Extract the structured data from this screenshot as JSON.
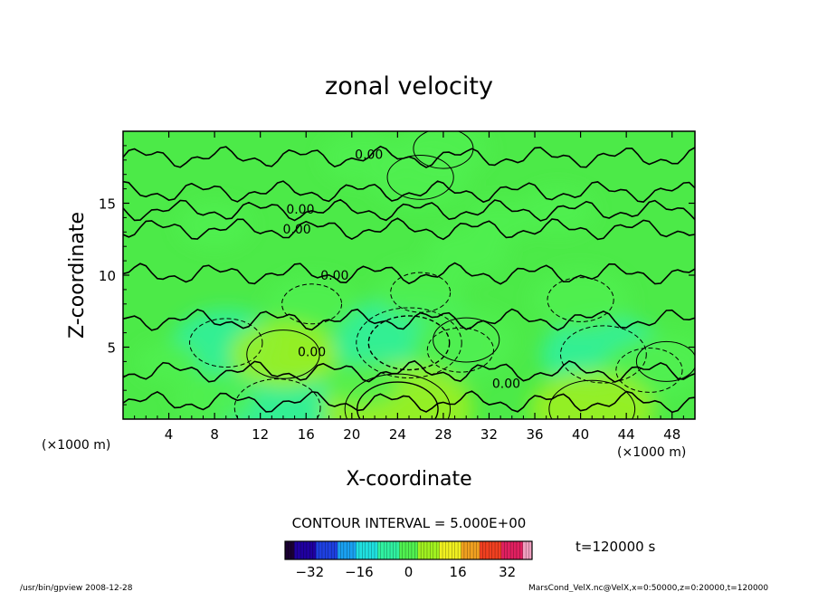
{
  "chart_data": {
    "type": "heatmap",
    "title": "zonal velocity",
    "xlabel": "X-coordinate",
    "ylabel": "Z-coordinate",
    "x_unit_left": "(×1000 m)",
    "x_unit_right": "(×1000 m)",
    "xlim": [
      0,
      50
    ],
    "ylim": [
      0,
      20
    ],
    "x_ticks": [
      4,
      8,
      12,
      16,
      20,
      24,
      28,
      32,
      36,
      40,
      44,
      48
    ],
    "y_ticks": [
      5,
      10,
      15
    ],
    "contour_labels": [
      {
        "text": "0.00",
        "x": 21.5,
        "z": 18.4
      },
      {
        "text": "0.00",
        "x": 15.5,
        "z": 14.6
      },
      {
        "text": "0.00",
        "x": 15.2,
        "z": 13.2
      },
      {
        "text": "0.00",
        "x": 18.5,
        "z": 10.0
      },
      {
        "text": "0.00",
        "x": 16.5,
        "z": 4.7
      },
      {
        "text": "0.00",
        "x": 33.5,
        "z": 2.5
      }
    ],
    "contour_interval_text": "CONTOUR INTERVAL = 5.000E+00",
    "colorbar": {
      "range": [
        -40,
        40
      ],
      "ticks": [
        -32,
        -16,
        0,
        16,
        32
      ],
      "colors": [
        "#1a0033",
        "#2000a0",
        "#1e40e0",
        "#1aa0f0",
        "#20e0e0",
        "#30f0a0",
        "#50f050",
        "#a0f020",
        "#f0f020",
        "#f0a020",
        "#f04020",
        "#e02060",
        "#f0a0c0"
      ]
    },
    "time_label": "t=120000 s",
    "features": [
      {
        "x": 25,
        "z": 5.3,
        "value": -12
      },
      {
        "x": 29.5,
        "z": 4.8,
        "value": -6
      },
      {
        "x": 42,
        "z": 4.5,
        "value": -9
      },
      {
        "x": 46,
        "z": 3.4,
        "value": -6
      },
      {
        "x": 13.5,
        "z": 0.8,
        "value": -9
      },
      {
        "x": 16.5,
        "z": 8.0,
        "value": -5
      },
      {
        "x": 26,
        "z": 8.8,
        "value": -5
      },
      {
        "x": 40,
        "z": 8.3,
        "value": -6
      },
      {
        "x": 9,
        "z": 5.3,
        "value": -7
      },
      {
        "x": 30,
        "z": 11.5,
        "value": -4
      },
      {
        "x": 38,
        "z": 14.5,
        "value": -3
      },
      {
        "x": 21,
        "z": 18.2,
        "value": -4
      },
      {
        "x": 14,
        "z": 4.5,
        "value": 7
      },
      {
        "x": 24,
        "z": 0.7,
        "value": 12
      },
      {
        "x": 41,
        "z": 0.7,
        "value": 9
      },
      {
        "x": 47.5,
        "z": 4.0,
        "value": 5
      },
      {
        "x": 30,
        "z": 5.5,
        "value": 6
      },
      {
        "x": 8,
        "z": 1.5,
        "value": 4
      },
      {
        "x": 26,
        "z": 16.8,
        "value": 6
      },
      {
        "x": 28,
        "z": 18.8,
        "value": 5
      },
      {
        "x": 8,
        "z": 13.5,
        "value": 3
      },
      {
        "x": 33,
        "z": 13.8,
        "value": 2
      },
      {
        "x": 21,
        "z": 2.5,
        "value": 3
      },
      {
        "x": 4,
        "z": 4.0,
        "value": -2
      }
    ]
  },
  "footer": {
    "left": "/usr/bin/gpview   2008-12-28",
    "right": "MarsCond_VelX.nc@VelX,x=0:50000,z=0:20000,t=120000"
  }
}
